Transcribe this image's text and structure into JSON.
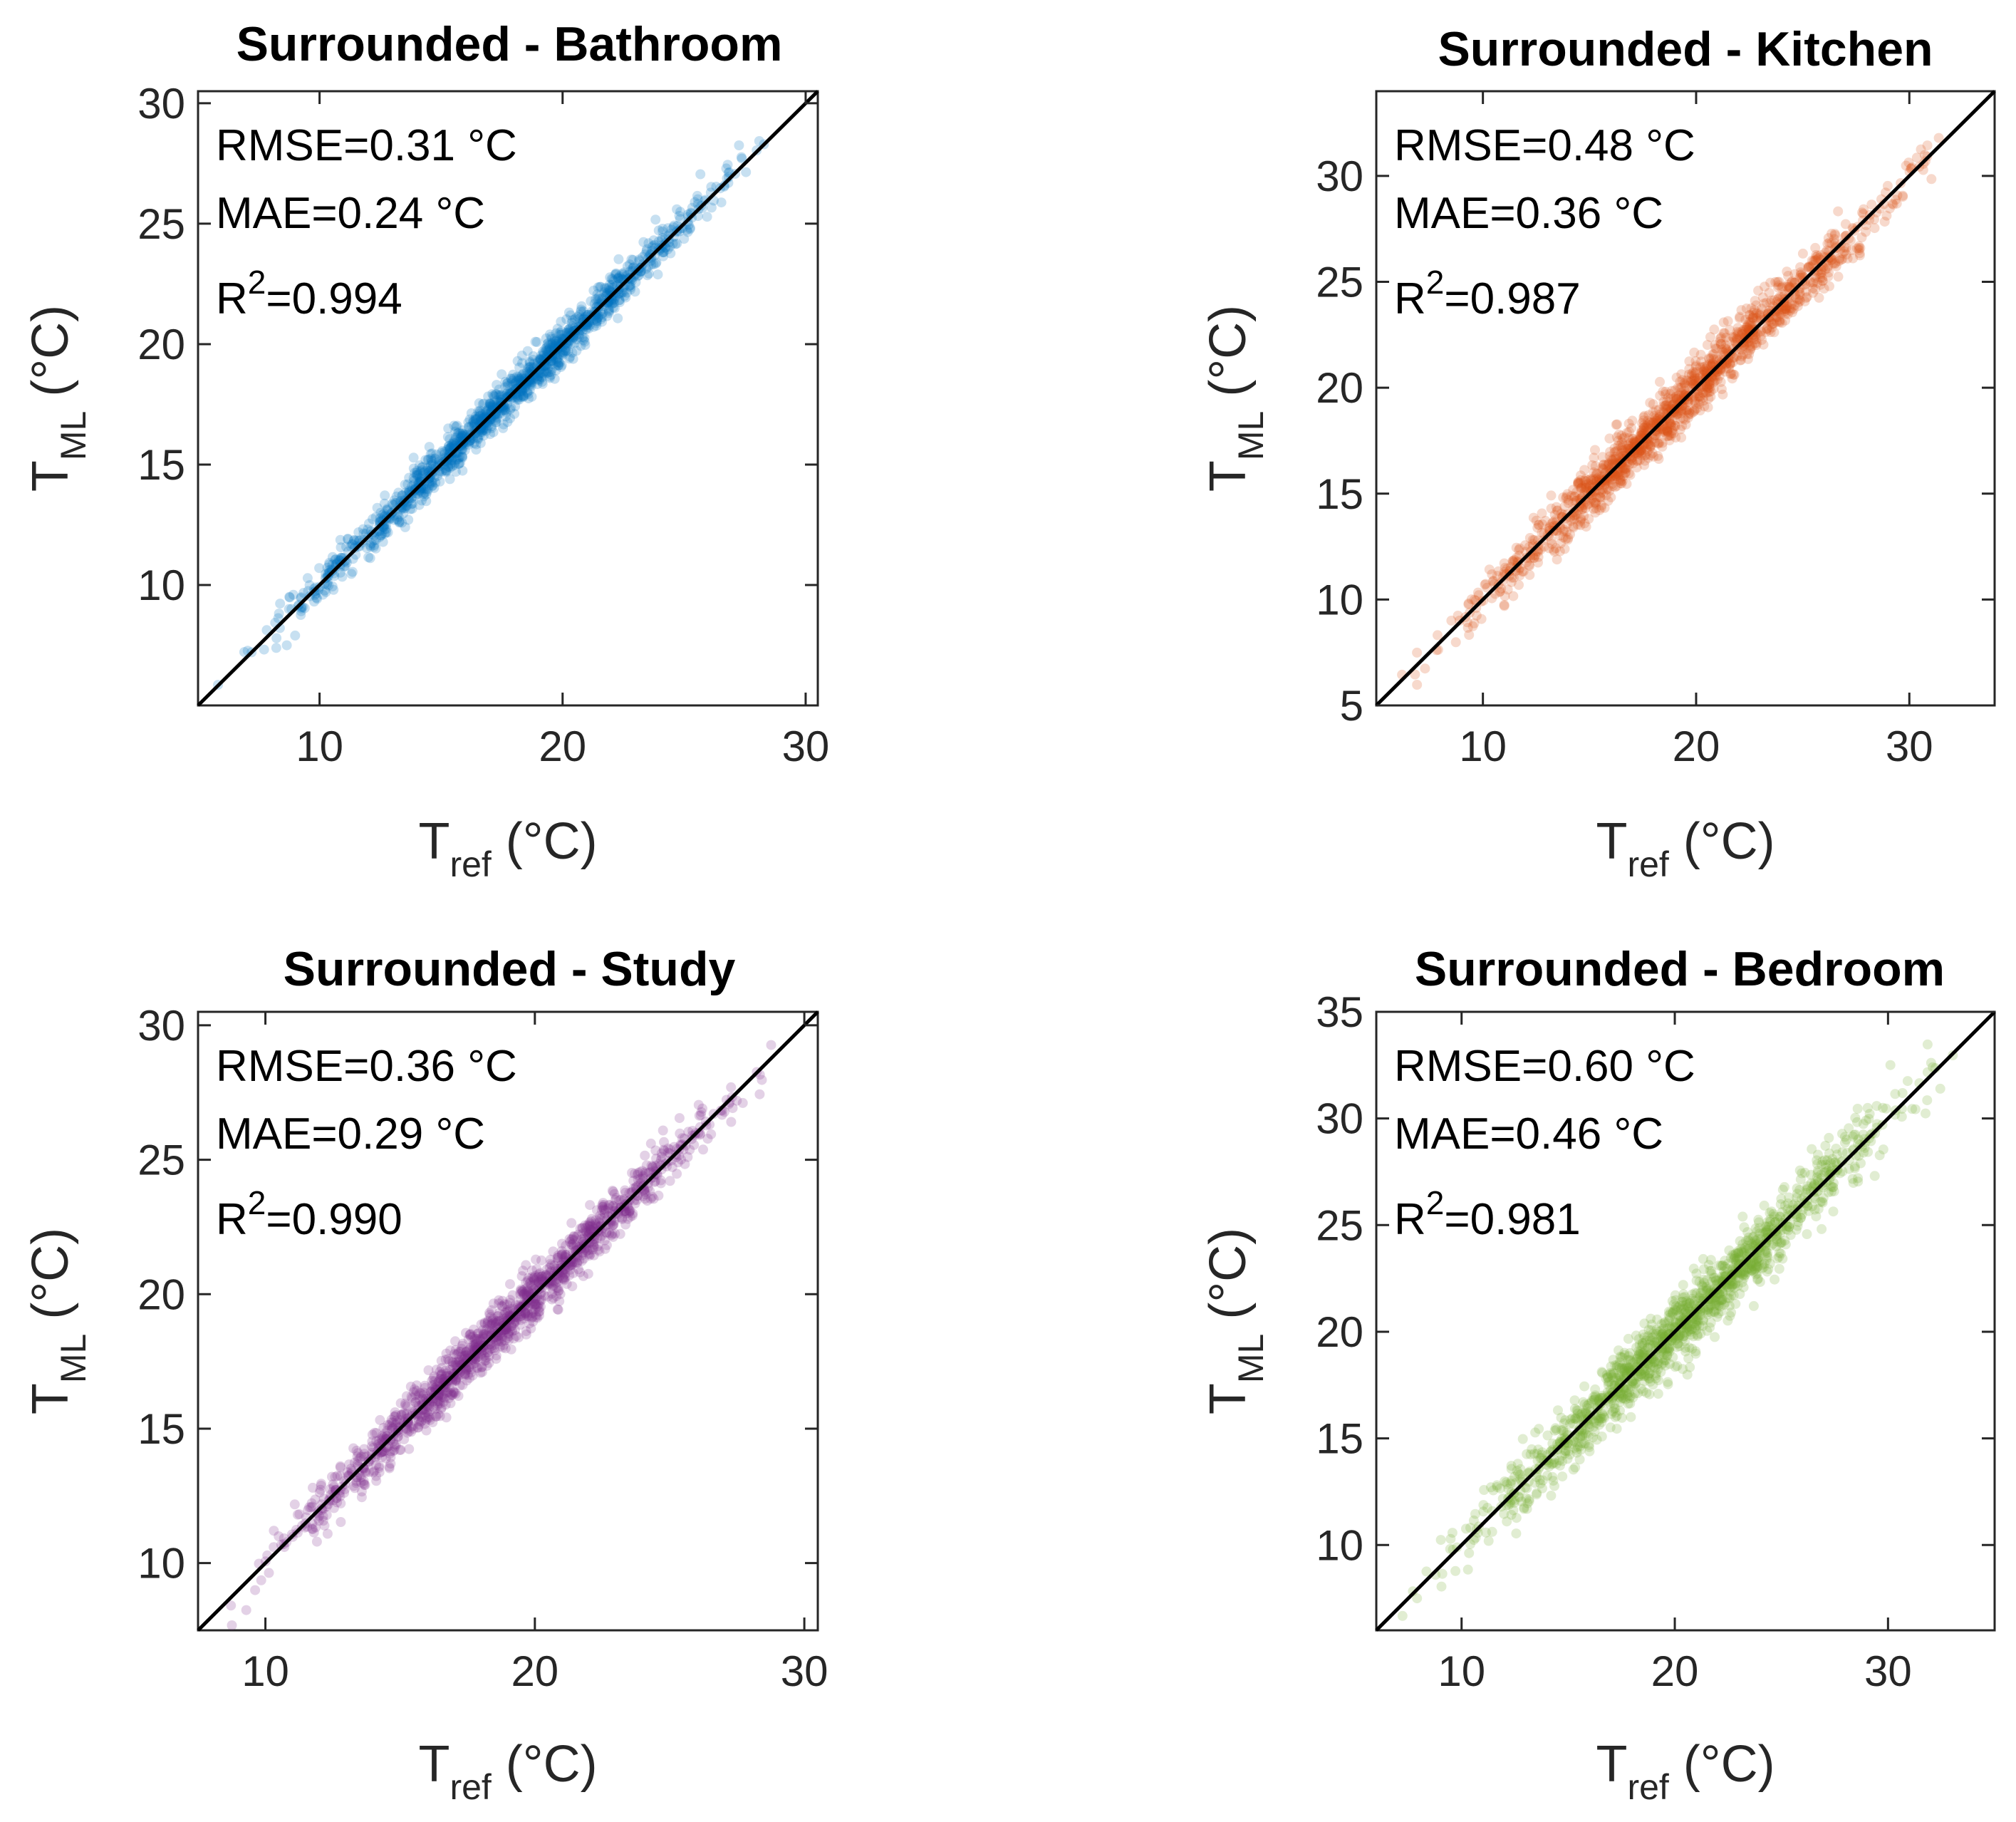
{
  "chart_data": [
    {
      "type": "scatter",
      "title": "Surrounded - Bathroom",
      "color": "#0072BD",
      "xlabel": "T",
      "xlabel_sub": "ref",
      "xlabel_unit": " (°C)",
      "ylabel": "T",
      "ylabel_sub": "ML",
      "ylabel_unit": " (°C)",
      "xlim": [
        5,
        30.5
      ],
      "ylim": [
        5,
        30.5
      ],
      "xticks": [
        10,
        20,
        30
      ],
      "yticks": [
        10,
        15,
        20,
        25,
        30
      ],
      "stats": {
        "rmse": "RMSE=0.31 °C",
        "mae": "MAE=0.24 °C",
        "r2_prefix": "R",
        "r2_sup": "2",
        "r2_value": "=0.994"
      },
      "spread": 0.31,
      "seed": 11,
      "reference_line": {
        "x": [
          5,
          30.5
        ],
        "y": [
          5,
          30.5
        ]
      }
    },
    {
      "type": "scatter",
      "title": "Surrounded - Kitchen",
      "color": "#D95319",
      "xlabel": "T",
      "xlabel_sub": "ref",
      "xlabel_unit": " (°C)",
      "ylabel": "T",
      "ylabel_sub": "ML",
      "ylabel_unit": " (°C)",
      "xlim": [
        5,
        34
      ],
      "ylim": [
        5,
        34
      ],
      "xticks": [
        10,
        20,
        30
      ],
      "yticks": [
        5,
        10,
        15,
        20,
        25,
        30
      ],
      "stats": {
        "rmse": "RMSE=0.48 °C",
        "mae": "MAE=0.36 °C",
        "r2_prefix": "R",
        "r2_sup": "2",
        "r2_value": "=0.987"
      },
      "spread": 0.48,
      "seed": 23,
      "reference_line": {
        "x": [
          5,
          34
        ],
        "y": [
          5,
          34
        ]
      }
    },
    {
      "type": "scatter",
      "title": "Surrounded - Study",
      "color": "#7E2F8E",
      "xlabel": "T",
      "xlabel_sub": "ref",
      "xlabel_unit": " (°C)",
      "ylabel": "T",
      "ylabel_sub": "ML",
      "ylabel_unit": " (°C)",
      "xlim": [
        7.5,
        30.5
      ],
      "ylim": [
        7.5,
        30.5
      ],
      "xticks": [
        10,
        20,
        30
      ],
      "yticks": [
        10,
        15,
        20,
        25,
        30
      ],
      "stats": {
        "rmse": "RMSE=0.36 °C",
        "mae": "MAE=0.29 °C",
        "r2_prefix": "R",
        "r2_sup": "2",
        "r2_value": "=0.990"
      },
      "spread": 0.36,
      "seed": 37,
      "reference_line": {
        "x": [
          7.5,
          30.5
        ],
        "y": [
          7.5,
          30.5
        ]
      }
    },
    {
      "type": "scatter",
      "title": "Surrounded - Bedroom",
      "color": "#77AC30",
      "xlabel": "T",
      "xlabel_sub": "ref",
      "xlabel_unit": " (°C)",
      "ylabel": "T",
      "ylabel_sub": "ML",
      "ylabel_unit": " (°C)",
      "xlim": [
        6,
        35
      ],
      "ylim": [
        6,
        35
      ],
      "xticks": [
        10,
        20,
        30
      ],
      "yticks": [
        10,
        15,
        20,
        25,
        30,
        35
      ],
      "stats": {
        "rmse": "RMSE=0.60 °C",
        "mae": "MAE=0.46 °C",
        "r2_prefix": "R",
        "r2_sup": "2",
        "r2_value": "=0.981"
      },
      "spread": 0.6,
      "seed": 53,
      "reference_line": {
        "x": [
          6,
          35
        ],
        "y": [
          6,
          35
        ]
      }
    }
  ]
}
